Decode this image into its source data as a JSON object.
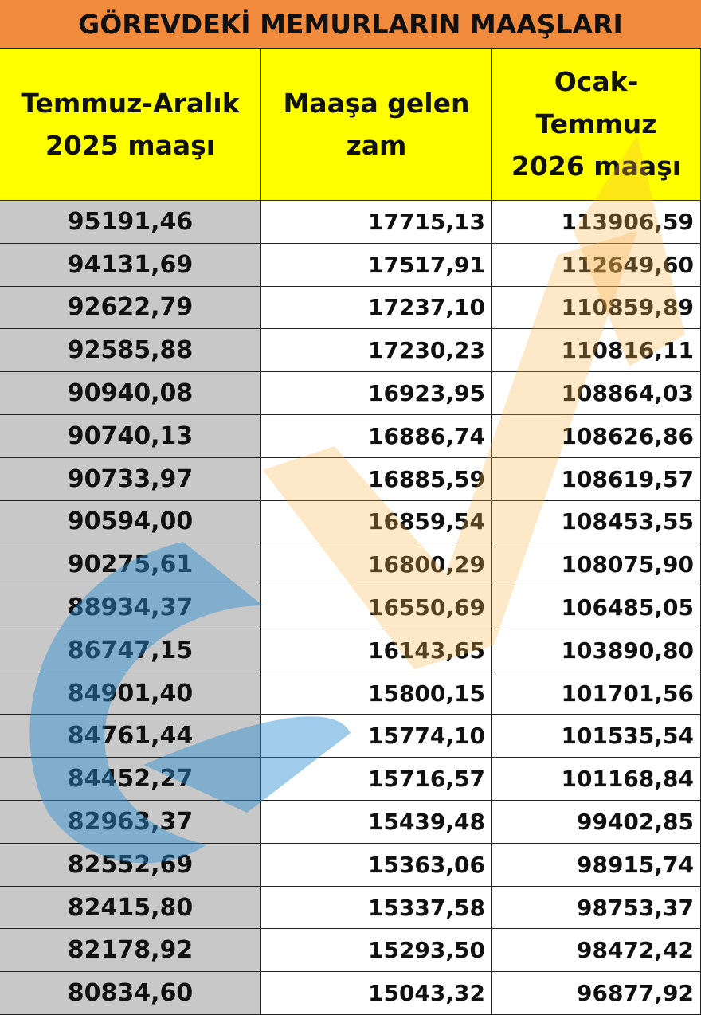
{
  "title": "GÖREVDEKİ MEMURLARIN MAAŞLARI",
  "table": {
    "header": [
      [
        "Temmuz-Aralık",
        "2025 maaşı"
      ],
      [
        "Maaşa gelen",
        "zam"
      ],
      [
        "Ocak-",
        "Temmuz",
        "2026 maaşı"
      ]
    ],
    "rows": [
      [
        "95191,46",
        "17715,13",
        "113906,59"
      ],
      [
        "94131,69",
        "17517,91",
        "112649,60"
      ],
      [
        "92622,79",
        "17237,10",
        "110859,89"
      ],
      [
        "92585,88",
        "17230,23",
        "110816,11"
      ],
      [
        "90940,08",
        "16923,95",
        "108864,03"
      ],
      [
        "90740,13",
        "16886,74",
        "108626,86"
      ],
      [
        "90733,97",
        "16885,59",
        "108619,57"
      ],
      [
        "90594,00",
        "16859,54",
        "108453,55"
      ],
      [
        "90275,61",
        "16800,29",
        "108075,90"
      ],
      [
        "88934,37",
        "16550,69",
        "106485,05"
      ],
      [
        "86747,15",
        "16143,65",
        "103890,80"
      ],
      [
        "84901,40",
        "15800,15",
        "101701,56"
      ],
      [
        "84761,44",
        "15774,10",
        "101535,54"
      ],
      [
        "84452,27",
        "15716,57",
        "101168,84"
      ],
      [
        "82963,37",
        "15439,48",
        "99402,85"
      ],
      [
        "82552,69",
        "15363,06",
        "98915,74"
      ],
      [
        "82415,80",
        "15337,58",
        "98753,37"
      ],
      [
        "82178,92",
        "15293,50",
        "98472,42"
      ],
      [
        "80834,60",
        "15043,32",
        "96877,92"
      ]
    ]
  }
}
